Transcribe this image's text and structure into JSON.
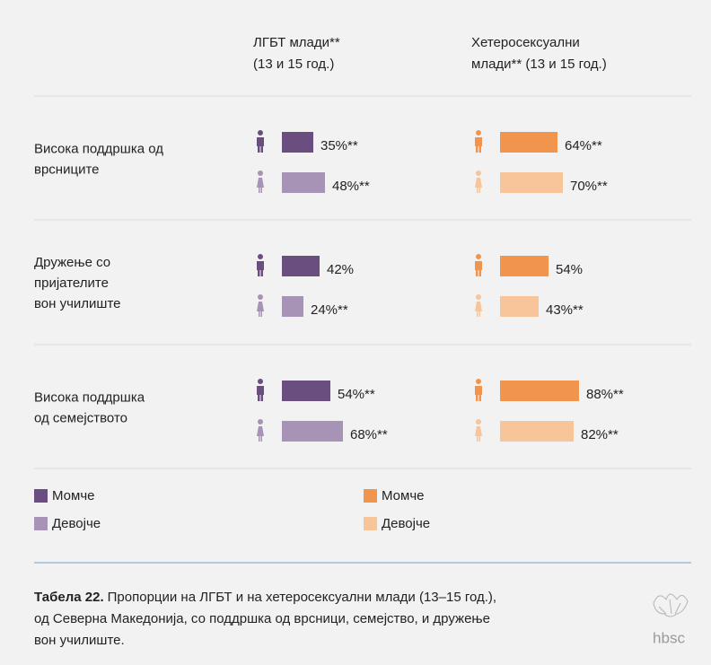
{
  "chart_data": {
    "type": "bar",
    "categories": [
      [
        "Висока поддршка од",
        "врсниците"
      ],
      [
        "Дружење со",
        "пријателите",
        "вон училиште"
      ],
      [
        "Висока поддршка",
        "од семејството"
      ]
    ],
    "groups": [
      {
        "title": [
          "ЛГБТ млади**",
          "(13 и 15 год.)"
        ],
        "series": [
          {
            "name": "Момче",
            "color": "#6a4e80",
            "values": [
              35,
              42,
              54
            ],
            "value_labels": [
              "35%**",
              "42%",
              "54%**"
            ]
          },
          {
            "name": "Девојче",
            "color": "#a793b5",
            "values": [
              48,
              24,
              68
            ],
            "value_labels": [
              "48%**",
              "24%**",
              "68%**"
            ]
          }
        ]
      },
      {
        "title": [
          "Хетеросексуални",
          "млади** (13 и 15 год.)"
        ],
        "series": [
          {
            "name": "Момче",
            "color": "#f0944e",
            "values": [
              64,
              54,
              88
            ],
            "value_labels": [
              "64%**",
              "54%",
              "88%**"
            ]
          },
          {
            "name": "Девојче",
            "color": "#f8c49a",
            "values": [
              70,
              43,
              82
            ],
            "value_labels": [
              "70%**",
              "43%**",
              "82%**"
            ]
          }
        ]
      }
    ],
    "caption": {
      "label": "Табела 22.",
      "lines": [
        "Пропорции на ЛГБТ и на хетеросексуални млади (13–15 год.),",
        "од Северна Македонија, со поддршка од врсници, семејство, и дружење",
        "вон училиште."
      ]
    },
    "logo": "hbsc"
  }
}
